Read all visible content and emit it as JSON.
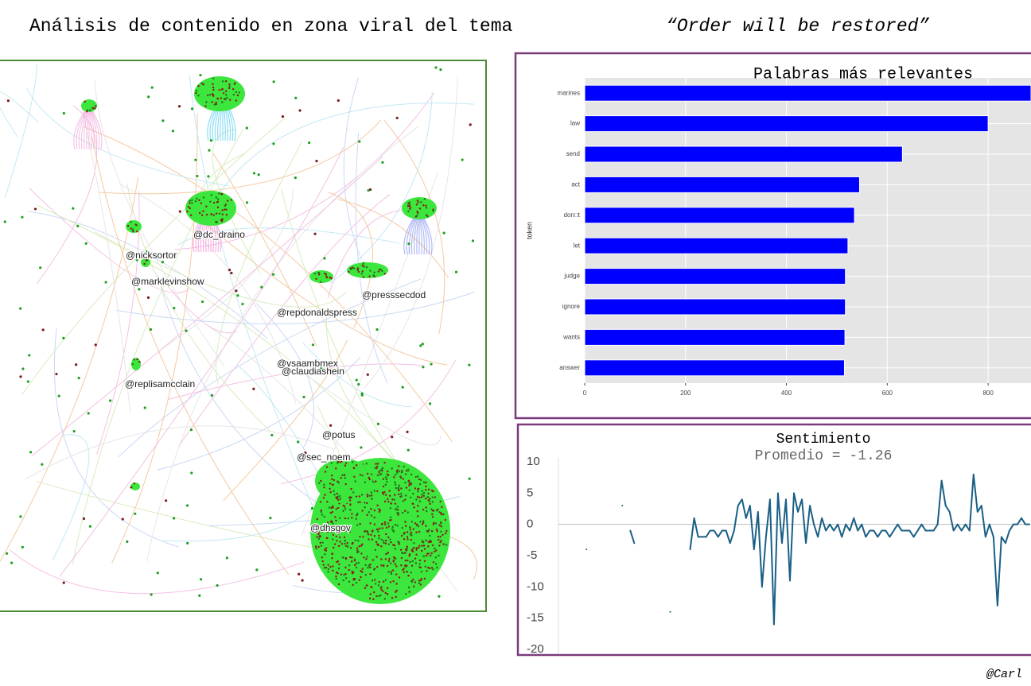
{
  "title": "Análisis de contenido en zona viral del tema",
  "title_emphasis": "“Order will be restored”",
  "network": {
    "labels": [
      "@dc_draino",
      "@nicksortor",
      "@marklevinshow",
      "@presssecdod",
      "@repdonaldspress",
      "@vsaambmex",
      "@claudiashein",
      "@replisamcclain",
      "@potus",
      "@sec_noem",
      "@dhsgov"
    ]
  },
  "credit": "@Carl",
  "chart_data": [
    {
      "type": "bar",
      "orientation": "horizontal",
      "title": "Palabras más relevantes",
      "y_label": "token",
      "categories": [
        "marines",
        "law",
        "send",
        "act",
        "don□t",
        "let",
        "judge",
        "ignore",
        "wants",
        "answer"
      ],
      "values": [
        885,
        800,
        630,
        545,
        535,
        522,
        517,
        517,
        516,
        515
      ],
      "color": "#0000ff",
      "xlim": [
        0,
        885
      ],
      "xticks": [
        0,
        200,
        400,
        600,
        800
      ],
      "grid": true
    },
    {
      "type": "line",
      "title": "Sentimiento",
      "subtitle": "Promedio = -1.26",
      "color": "#1a5f86",
      "ylim": [
        -20,
        10
      ],
      "yticks": [
        10,
        5,
        0,
        -5,
        -10,
        -15,
        -20
      ],
      "zero_line": true,
      "values": [
        null,
        null,
        null,
        null,
        null,
        null,
        null,
        -4,
        null,
        null,
        null,
        null,
        null,
        null,
        null,
        null,
        3,
        null,
        -1,
        -3,
        null,
        null,
        null,
        null,
        null,
        null,
        null,
        null,
        -14,
        null,
        null,
        null,
        null,
        -4,
        1,
        -2,
        -2,
        -2,
        -1,
        -1,
        -2,
        -1,
        -1,
        -3,
        -1,
        3,
        4,
        1,
        3,
        -4,
        2,
        -10,
        -2,
        4,
        -16,
        5,
        -3,
        4,
        -9,
        5,
        2,
        4,
        -3,
        3,
        0,
        -2,
        1,
        -1,
        0,
        -1,
        0,
        -2,
        0,
        -1,
        1,
        -1,
        0,
        -2,
        -1,
        -1,
        -2,
        -1,
        -1,
        -2,
        -1,
        0,
        -1,
        -1,
        -1,
        -2,
        -1,
        0,
        -1,
        -1,
        -1,
        0,
        7,
        3,
        2,
        -1,
        0,
        -1,
        0,
        -1,
        8,
        2,
        3,
        -2,
        0,
        -2,
        -13,
        -2,
        -3,
        -1,
        0,
        0,
        1,
        0,
        0
      ]
    }
  ]
}
